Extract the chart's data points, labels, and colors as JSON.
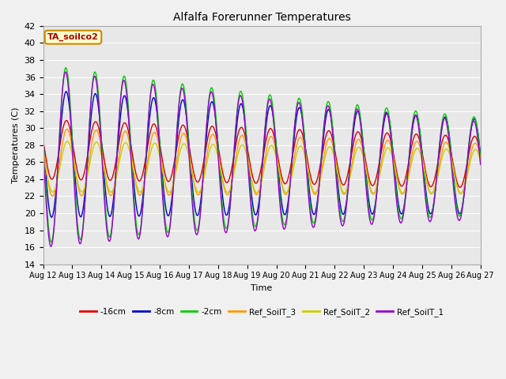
{
  "title": "Alfalfa Forerunner Temperatures",
  "xlabel": "Time",
  "ylabel": "Temperatures (C)",
  "ylim": [
    14,
    42
  ],
  "annotation_text": "TA_soilco2",
  "annotation_color": "#aa0000",
  "annotation_bg": "#ffffcc",
  "annotation_border": "#cc8800",
  "grid_color": "#cccccc",
  "x_tick_labels": [
    "Aug 12",
    "Aug 13",
    "Aug 14",
    "Aug 15",
    "Aug 16",
    "Aug 17",
    "Aug 18",
    "Aug 19",
    "Aug 20",
    "Aug 21",
    "Aug 22",
    "Aug 23",
    "Aug 24",
    "Aug 25",
    "Aug 26",
    "Aug 27"
  ],
  "legend_colors": [
    "#dd0000",
    "#0000cc",
    "#00cc00",
    "#ff9900",
    "#cccc00",
    "#9900cc"
  ],
  "legend_labels": [
    "-16cm",
    "-8cm",
    "-2cm",
    "Ref_SoilT_3",
    "Ref_SoilT_2",
    "Ref_SoilT_1"
  ],
  "series": [
    {
      "color": "#dd0000",
      "label": "-16cm",
      "amp": 3.5,
      "mean": 27.5,
      "phase": 0.55,
      "amp_decay": 0.01,
      "mean_decay": 0.1
    },
    {
      "color": "#0000cc",
      "label": "-8cm",
      "amp": 7.5,
      "mean": 27.0,
      "phase": 0.54,
      "amp_decay": 0.02,
      "mean_decay": 0.1
    },
    {
      "color": "#00cc00",
      "label": "-2cm",
      "amp": 10.5,
      "mean": 27.0,
      "phase": 0.53,
      "amp_decay": 0.04,
      "mean_decay": 0.1
    },
    {
      "color": "#ff9900",
      "label": "Ref_SoilT_3",
      "amp": 4.0,
      "mean": 26.0,
      "phase": 0.57,
      "amp_decay": 0.02,
      "mean_decay": 0.05
    },
    {
      "color": "#cccc00",
      "label": "Ref_SoilT_2",
      "amp": 3.0,
      "mean": 25.5,
      "phase": 0.58,
      "amp_decay": 0.01,
      "mean_decay": 0.04
    },
    {
      "color": "#9900cc",
      "label": "Ref_SoilT_1",
      "amp": 10.5,
      "mean": 26.5,
      "phase": 0.52,
      "amp_decay": 0.04,
      "mean_decay": 0.1
    }
  ]
}
